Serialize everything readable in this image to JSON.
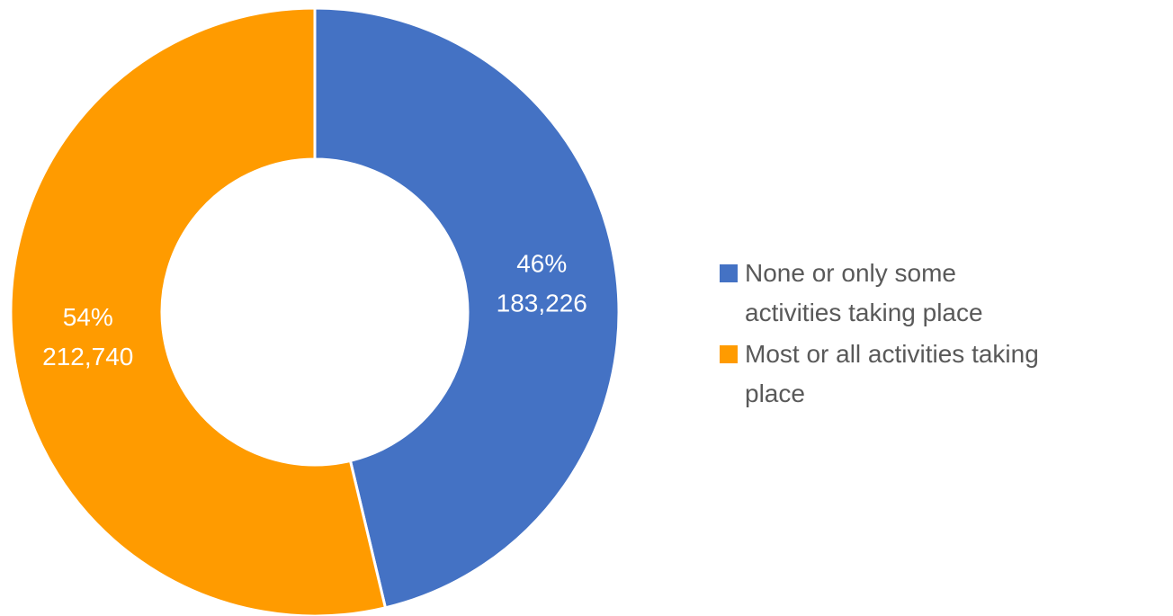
{
  "chart_data": {
    "type": "donut",
    "categories": [
      "None or only some activities taking place",
      "Most or all activities taking place"
    ],
    "values": [
      183226,
      212740
    ],
    "value_labels": [
      "183,226",
      "212,740"
    ],
    "percents": [
      46,
      54
    ],
    "percent_labels": [
      "46%",
      "54%"
    ],
    "colors": [
      "#4472c4",
      "#ff9b00"
    ],
    "legend": "right"
  }
}
